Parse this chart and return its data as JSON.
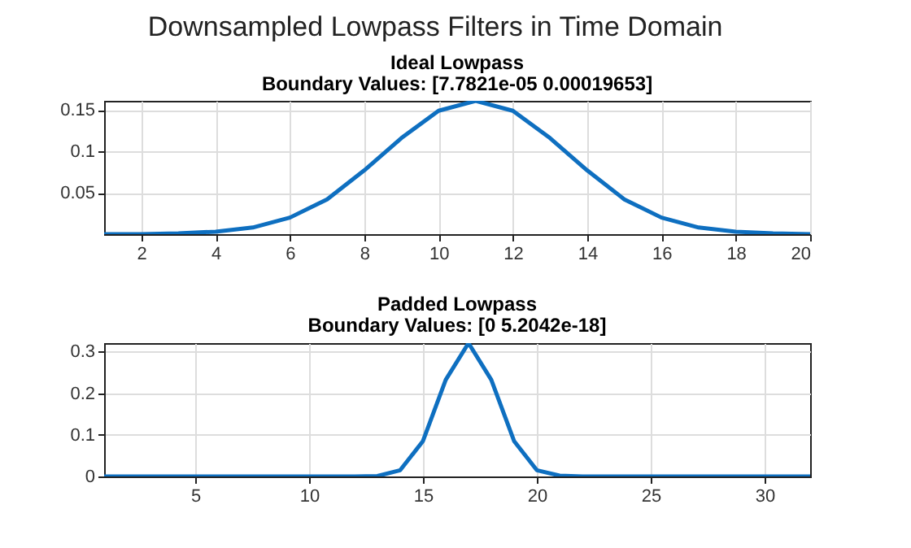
{
  "chart_data": [
    {
      "type": "line",
      "title": "Ideal Lowpass",
      "subtitle": "Boundary Values: [7.7821e-05  0.00019653]",
      "annotations": [
        "Downsampled Lowpass Filters in Time Domain"
      ],
      "x": [
        1,
        2,
        3,
        4,
        5,
        6,
        7,
        8,
        9,
        10,
        11,
        12,
        13,
        14,
        15,
        16,
        17,
        18,
        19,
        20
      ],
      "series": [
        {
          "color": "#0e6fc0",
          "values": [
            0,
            0,
            0.001,
            0.003,
            0.008,
            0.02,
            0.042,
            0.077,
            0.116,
            0.149,
            0.161,
            0.149,
            0.116,
            0.077,
            0.042,
            0.02,
            0.008,
            0.003,
            0.001,
            0
          ]
        }
      ],
      "xlim": [
        1,
        20
      ],
      "xticks": [
        2,
        4,
        6,
        8,
        10,
        12,
        14,
        16,
        18,
        20
      ],
      "ylim": [
        0,
        0.161
      ],
      "yticks": [
        0.05,
        0.1,
        0.15
      ],
      "grid": true,
      "marker": "none",
      "line_style": "solid"
    },
    {
      "type": "line",
      "title": "Padded Lowpass",
      "subtitle": "Boundary Values: [0  5.2042e-18]",
      "x": [
        1,
        2,
        3,
        4,
        5,
        6,
        7,
        8,
        9,
        10,
        11,
        12,
        13,
        14,
        15,
        16,
        17,
        18,
        19,
        20,
        21,
        22,
        23,
        24,
        25,
        26,
        27,
        28,
        29,
        30,
        31,
        32
      ],
      "series": [
        {
          "color": "#0e6fc0",
          "values": [
            0,
            0,
            0,
            0,
            0,
            0,
            0,
            0,
            0,
            0,
            0,
            0,
            0.001,
            0.015,
            0.085,
            0.232,
            0.32,
            0.232,
            0.085,
            0.015,
            0.002,
            0,
            0,
            0,
            0,
            0,
            0,
            0,
            0,
            0,
            0,
            0
          ]
        }
      ],
      "xlim": [
        1,
        32
      ],
      "xticks": [
        5,
        10,
        15,
        20,
        25,
        30
      ],
      "ylim": [
        0,
        0.32
      ],
      "yticks": [
        0,
        0.1,
        0.2,
        0.3
      ],
      "grid": true,
      "marker": "none",
      "line_style": "solid"
    }
  ]
}
